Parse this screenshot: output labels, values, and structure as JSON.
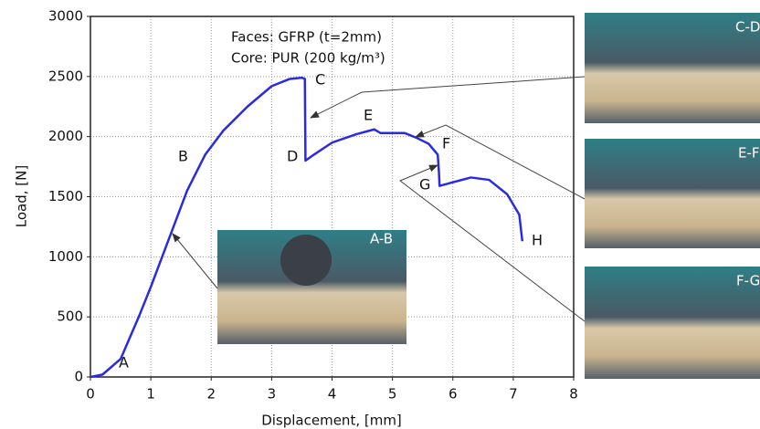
{
  "chart_data": {
    "type": "line",
    "xlabel": "Displacement, [mm]",
    "ylabel": "Load, [N]",
    "annotations": [
      "Faces: GFRP (t=2mm)",
      "Core: PUR (200 kg/m³)"
    ],
    "point_labels": [
      "A",
      "B",
      "C",
      "D",
      "E",
      "F",
      "G",
      "H"
    ],
    "inset_labels": [
      "A-B",
      "C-D",
      "E-F",
      "F-G"
    ],
    "xlim": [
      0,
      8
    ],
    "xticks": [
      0,
      1,
      2,
      3,
      4,
      5,
      6,
      7,
      8
    ],
    "ylim": [
      0,
      3000
    ],
    "yticks": [
      0,
      500,
      1000,
      1500,
      2000,
      2500,
      3000
    ],
    "grid": true,
    "series": [
      {
        "color": "#2a2ae6",
        "x": [
          0,
          0.2,
          0.5,
          0.8,
          1.0,
          1.3,
          1.6,
          1.9,
          2.2,
          2.6,
          3.0,
          3.3,
          3.5,
          3.55,
          3.56,
          3.7,
          4.0,
          4.4,
          4.7,
          4.8,
          5.2,
          5.4,
          5.6,
          5.75,
          5.77,
          5.78,
          6.0,
          6.3,
          6.6,
          6.9,
          7.1,
          7.15
        ],
        "values": [
          0,
          20,
          150,
          500,
          750,
          1150,
          1550,
          1850,
          2050,
          2250,
          2420,
          2480,
          2490,
          2480,
          1800,
          1850,
          1950,
          2020,
          2060,
          2030,
          2030,
          1990,
          1940,
          1850,
          1700,
          1590,
          1620,
          1660,
          1640,
          1520,
          1350,
          1130
        ]
      }
    ]
  }
}
